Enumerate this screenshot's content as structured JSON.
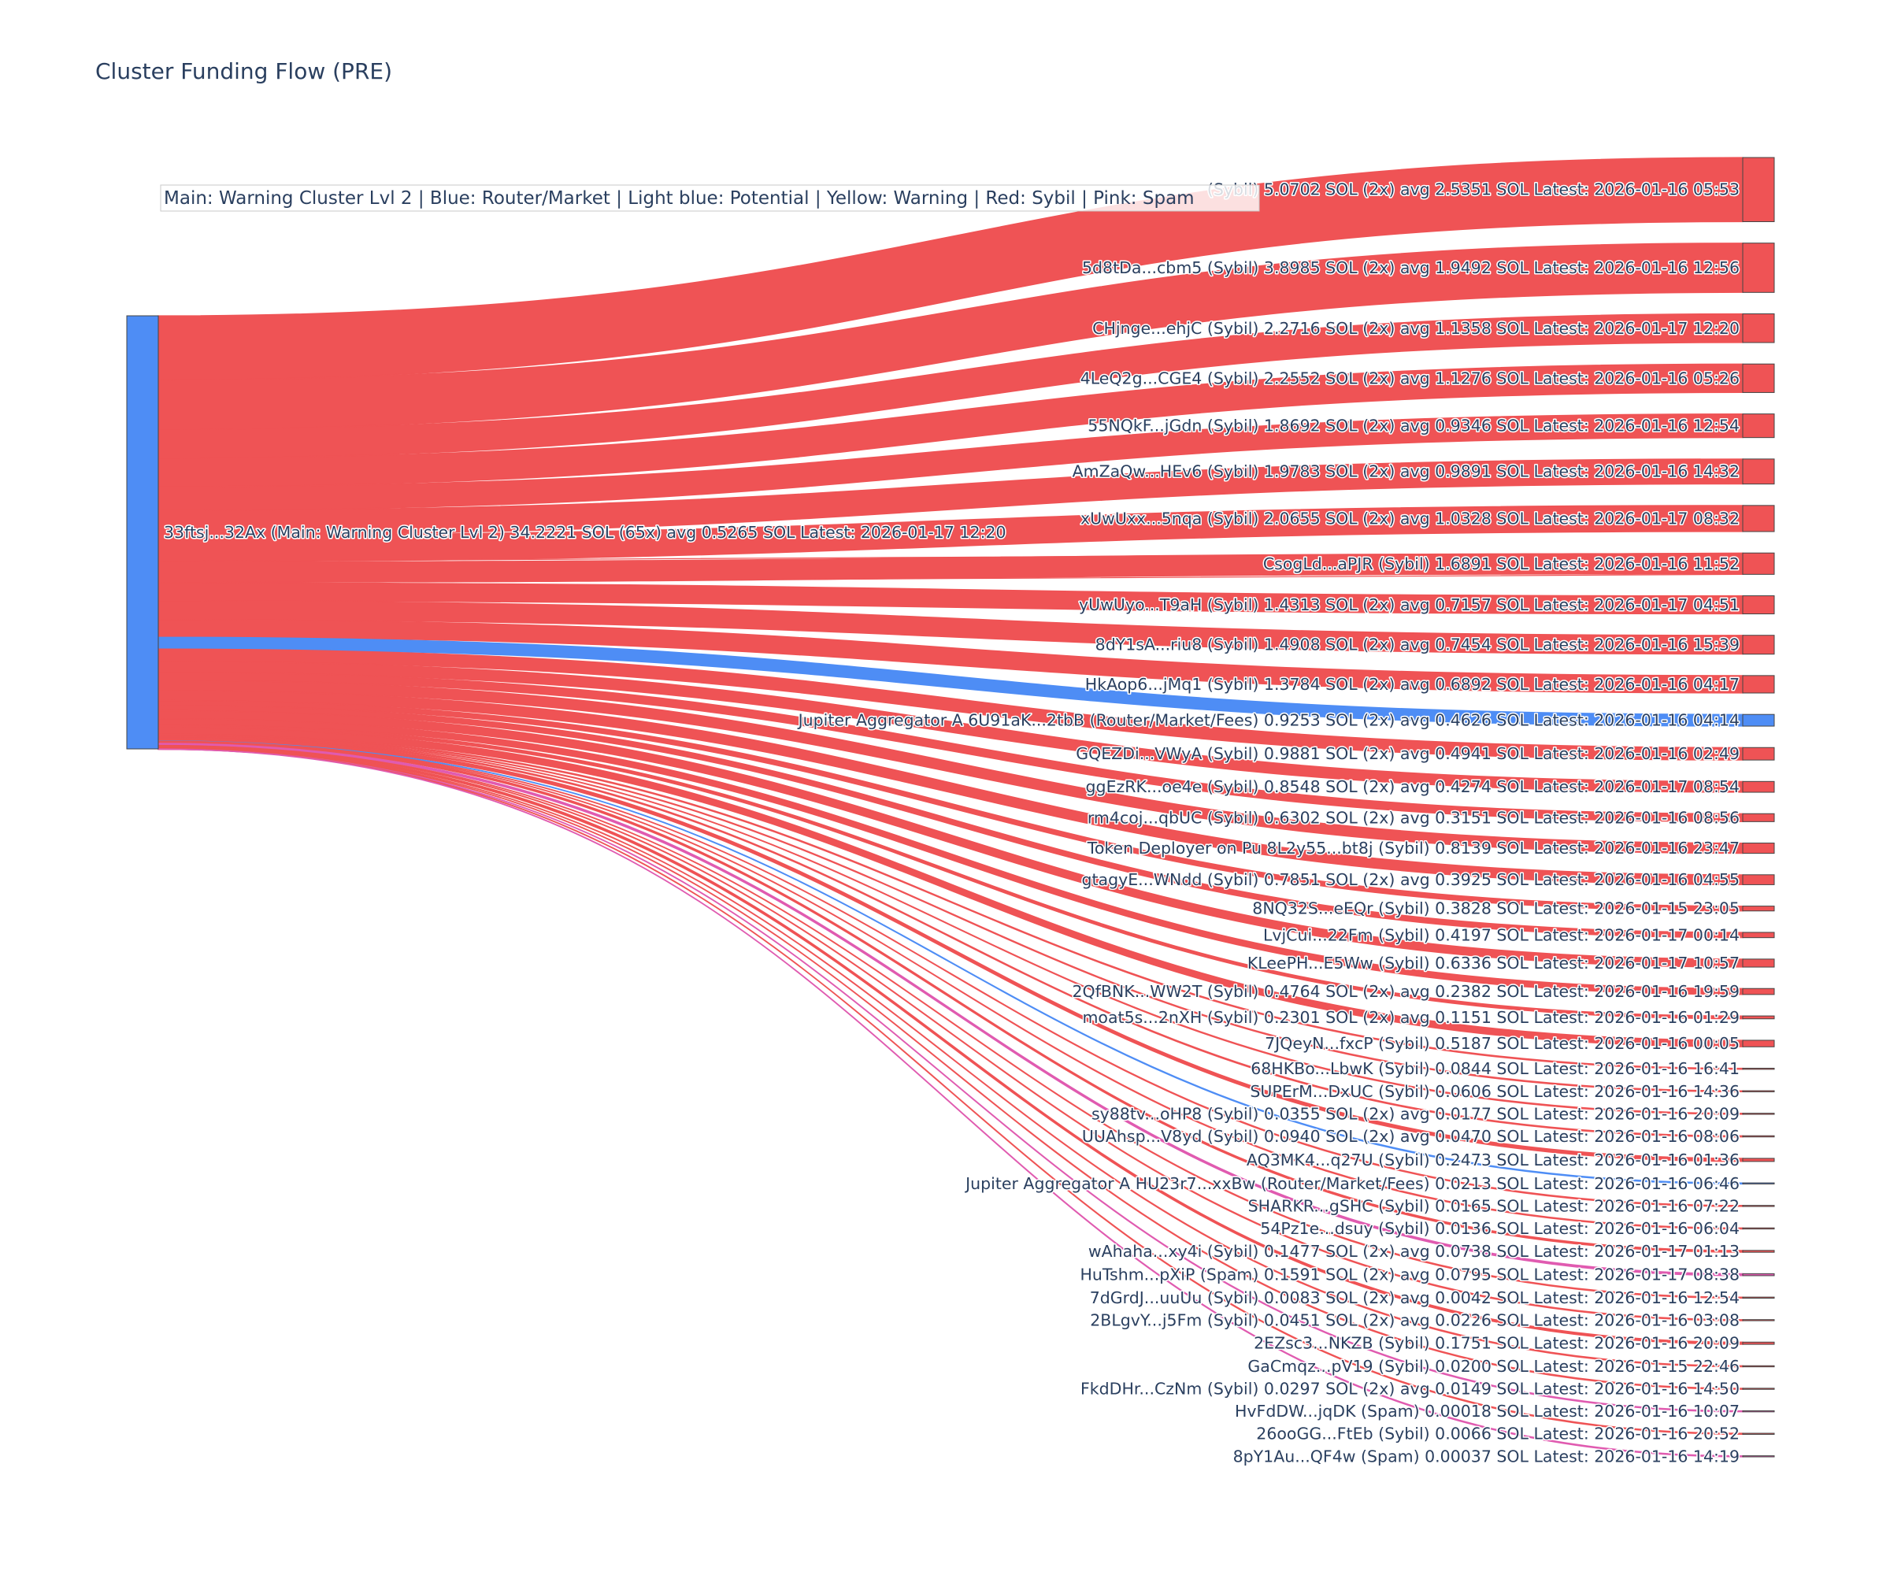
{
  "chart_data": {
    "type": "sankey",
    "title": "Cluster Funding Flow (PRE)",
    "legend_note": "Main: Warning Cluster Lvl 2  |  Blue: Router/Market | Light blue: Potential | Yellow: Warning | Red: Sybil | Pink: Spam",
    "colors": {
      "main": "#4e8df5",
      "router": "#4e8df5",
      "sybil": "#ef5355",
      "spam": "#e05bb0"
    },
    "source": {
      "label": "33ftsj...32Ax (Main: Warning Cluster Lvl 2) 34.2221 SOL (65x) avg 0.5265 SOL Latest: 2026-01-17 12:20",
      "category": "main",
      "value": 34.2221
    },
    "targets": [
      {
        "label": "       (Sybil) 5.0702 SOL (2x) avg 2.5351 SOL Latest: 2026-01-16 05:53",
        "value": 5.0702,
        "category": "sybil"
      },
      {
        "label": "5d8tDa...cbm5 (Sybil) 3.8985 SOL (2x) avg 1.9492 SOL Latest: 2026-01-16 12:56",
        "value": 3.8985,
        "category": "sybil"
      },
      {
        "label": "CHjnge...ehjC (Sybil) 2.2716 SOL (2x) avg 1.1358 SOL Latest: 2026-01-17 12:20",
        "value": 2.2716,
        "category": "sybil"
      },
      {
        "label": "4LeQ2g...CGE4 (Sybil) 2.2552 SOL (2x) avg 1.1276 SOL Latest: 2026-01-16 05:26",
        "value": 2.2552,
        "category": "sybil"
      },
      {
        "label": "55NQkF...jGdn (Sybil) 1.8692 SOL (2x) avg 0.9346 SOL Latest: 2026-01-16 12:54",
        "value": 1.8692,
        "category": "sybil"
      },
      {
        "label": "AmZaQw...HEv6 (Sybil) 1.9783 SOL (2x) avg 0.9891 SOL Latest: 2026-01-16 14:32",
        "value": 1.9783,
        "category": "sybil"
      },
      {
        "label": "xUwUxx...5nqa (Sybil) 2.0655 SOL (2x) avg 1.0328 SOL Latest: 2026-01-17 08:32",
        "value": 2.0655,
        "category": "sybil"
      },
      {
        "label": "CsogLd...aPJR (Sybil) 1.6891 SOL Latest: 2026-01-16 11:52",
        "value": 1.6891,
        "category": "sybil"
      },
      {
        "label": "yUwUyo...T9aH (Sybil) 1.4313 SOL (2x) avg 0.7157 SOL Latest: 2026-01-17 04:51",
        "value": 1.4313,
        "category": "sybil"
      },
      {
        "label": "8dY1sA...riu8 (Sybil) 1.4908 SOL (2x) avg 0.7454 SOL Latest: 2026-01-16 15:39",
        "value": 1.4908,
        "category": "sybil"
      },
      {
        "label": "HkAop6...jMq1 (Sybil) 1.3784 SOL (2x) avg 0.6892 SOL Latest: 2026-01-16 04:17",
        "value": 1.3784,
        "category": "sybil"
      },
      {
        "label": "Jupiter Aggregator A 6U91aK...2tbB (Router/Market/Fees) 0.9253 SOL (2x) avg 0.4626 SOL Latest: 2026-01-16 04:14",
        "value": 0.9253,
        "category": "router"
      },
      {
        "label": "GQEZDi...VWyA (Sybil) 0.9881 SOL (2x) avg 0.4941 SOL Latest: 2026-01-16 02:49",
        "value": 0.9881,
        "category": "sybil"
      },
      {
        "label": "ggEzRK...oe4e (Sybil) 0.8548 SOL (2x) avg 0.4274 SOL Latest: 2026-01-17 08:54",
        "value": 0.8548,
        "category": "sybil"
      },
      {
        "label": "rm4coj...qbUC (Sybil) 0.6302 SOL (2x) avg 0.3151 SOL Latest: 2026-01-16 08:56",
        "value": 0.6302,
        "category": "sybil"
      },
      {
        "label": "Token Deployer on Pu 8L2y55...bt8j (Sybil) 0.8139 SOL Latest: 2026-01-16 23:47",
        "value": 0.8139,
        "category": "sybil"
      },
      {
        "label": "gtagyE...WNdd (Sybil) 0.7851 SOL (2x) avg 0.3925 SOL Latest: 2026-01-16 04:55",
        "value": 0.7851,
        "category": "sybil"
      },
      {
        "label": "8NQ32S...eEQr (Sybil) 0.3828 SOL Latest: 2026-01-15 23:05",
        "value": 0.3828,
        "category": "sybil"
      },
      {
        "label": "LvjCui...22Fm (Sybil) 0.4197 SOL Latest: 2026-01-17 00:14",
        "value": 0.4197,
        "category": "sybil"
      },
      {
        "label": "KLeePH...E5Ww (Sybil) 0.6336 SOL Latest: 2026-01-17 10:57",
        "value": 0.6336,
        "category": "sybil"
      },
      {
        "label": "2QfBNK...WW2T (Sybil) 0.4764 SOL (2x) avg 0.2382 SOL Latest: 2026-01-16 19:59",
        "value": 0.4764,
        "category": "sybil"
      },
      {
        "label": "moat5s...2nXH (Sybil) 0.2301 SOL (2x) avg 0.1151 SOL Latest: 2026-01-16 01:29",
        "value": 0.2301,
        "category": "sybil"
      },
      {
        "label": "7JQeyN...fxcP (Sybil) 0.5187 SOL Latest: 2026-01-16 00:05",
        "value": 0.5187,
        "category": "sybil"
      },
      {
        "label": "68HKBo...LbwK (Sybil) 0.0844 SOL Latest: 2026-01-16 16:41",
        "value": 0.0844,
        "category": "sybil"
      },
      {
        "label": "SUPErM...DxUC (Sybil) 0.0606 SOL Latest: 2026-01-16 14:36",
        "value": 0.0606,
        "category": "sybil"
      },
      {
        "label": "sy88tv...oHP8 (Sybil) 0.0355 SOL (2x) avg 0.0177 SOL Latest: 2026-01-16 20:09",
        "value": 0.0355,
        "category": "sybil"
      },
      {
        "label": "UUAhsp...V8yd (Sybil) 0.0940 SOL (2x) avg 0.0470 SOL Latest: 2026-01-16 08:06",
        "value": 0.094,
        "category": "sybil"
      },
      {
        "label": "AQ3MK4...q27U (Sybil) 0.2473 SOL Latest: 2026-01-16 01:36",
        "value": 0.2473,
        "category": "sybil"
      },
      {
        "label": "Jupiter Aggregator A HU23r7...xxBw (Router/Market/Fees) 0.0213 SOL Latest: 2026-01-16 06:46",
        "value": 0.0213,
        "category": "router"
      },
      {
        "label": "SHARKR...gSHC (Sybil) 0.0165 SOL Latest: 2026-01-16 07:22",
        "value": 0.0165,
        "category": "sybil"
      },
      {
        "label": "54Pz1e...dsuy (Sybil) 0.0136 SOL Latest: 2026-01-16 06:04",
        "value": 0.0136,
        "category": "sybil"
      },
      {
        "label": "wAhaha...xy4i (Sybil) 0.1477 SOL (2x) avg 0.0738 SOL Latest: 2026-01-17 01:13",
        "value": 0.1477,
        "category": "sybil"
      },
      {
        "label": "HuTshm...pXiP (Spam) 0.1591 SOL (2x) avg 0.0795 SOL Latest: 2026-01-17 08:38",
        "value": 0.1591,
        "category": "spam"
      },
      {
        "label": "7dGrdJ...uuUu (Sybil) 0.0083 SOL (2x) avg 0.0042 SOL Latest: 2026-01-16 12:54",
        "value": 0.0083,
        "category": "sybil"
      },
      {
        "label": "2BLgvY...j5Fm (Sybil) 0.0451 SOL (2x) avg 0.0226 SOL Latest: 2026-01-16 03:08",
        "value": 0.0451,
        "category": "sybil"
      },
      {
        "label": "2EZsc3...NKZB (Sybil) 0.1751 SOL Latest: 2026-01-16 20:09",
        "value": 0.1751,
        "category": "sybil"
      },
      {
        "label": "GaCmqz...pV19 (Sybil) 0.0200 SOL Latest: 2026-01-15 22:46",
        "value": 0.02,
        "category": "sybil"
      },
      {
        "label": "FkdDHr...CzNm (Sybil) 0.0297 SOL (2x) avg 0.0149 SOL Latest: 2026-01-16 14:50",
        "value": 0.0297,
        "category": "sybil"
      },
      {
        "label": "HvFdDW...jqDK (Spam) 0.00018 SOL Latest: 2026-01-16 10:07",
        "value": 0.00018,
        "category": "spam"
      },
      {
        "label": "26ooGG...FtEb (Sybil) 0.0066 SOL Latest: 2026-01-16 20:52",
        "value": 0.0066,
        "category": "sybil"
      },
      {
        "label": "8pY1Au...QF4w (Spam) 0.00037 SOL Latest: 2026-01-16 14:19",
        "value": 0.00037,
        "category": "spam"
      }
    ]
  }
}
